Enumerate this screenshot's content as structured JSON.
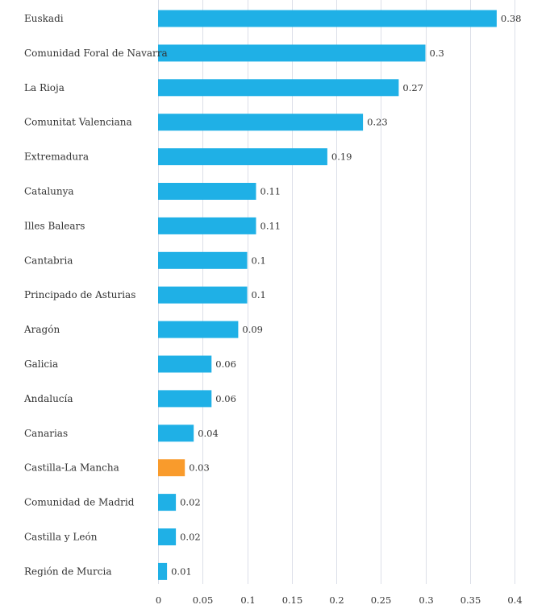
{
  "chart_data": {
    "type": "bar",
    "orientation": "horizontal",
    "categories": [
      "Euskadi",
      "Comunidad Foral de Navarra",
      "La Rioja",
      "Comunitat Valenciana",
      "Extremadura",
      "Catalunya",
      "Illes Balears",
      "Cantabria",
      "Principado de Asturias",
      "Aragón",
      "Galicia",
      "Andalucía",
      "Canarias",
      "Castilla-La Mancha",
      "Comunidad de Madrid",
      "Castilla y León",
      "Región de Murcia"
    ],
    "values": [
      0.38,
      0.3,
      0.27,
      0.23,
      0.19,
      0.11,
      0.11,
      0.1,
      0.1,
      0.09,
      0.06,
      0.06,
      0.04,
      0.03,
      0.02,
      0.02,
      0.01
    ],
    "value_labels": [
      "0.38",
      "0.3",
      "0.27",
      "0.23",
      "0.19",
      "0.11",
      "0.11",
      "0.1",
      "0.1",
      "0.09",
      "0.06",
      "0.06",
      "0.04",
      "0.03",
      "0.02",
      "0.02",
      "0.01"
    ],
    "highlight_category": "Castilla-La Mancha",
    "bar_color": "#1fb0e6",
    "highlight_color": "#f99b2c",
    "xlim": [
      0,
      0.4
    ],
    "x_ticks": [
      0,
      0.05,
      0.1,
      0.15,
      0.2,
      0.25,
      0.3,
      0.35,
      0.4
    ],
    "x_tick_labels": [
      "0",
      "0.05",
      "0.1",
      "0.15",
      "0.2",
      "0.25",
      "0.3",
      "0.35",
      "0.4"
    ],
    "grid": true,
    "title": "",
    "xlabel": "",
    "ylabel": ""
  }
}
